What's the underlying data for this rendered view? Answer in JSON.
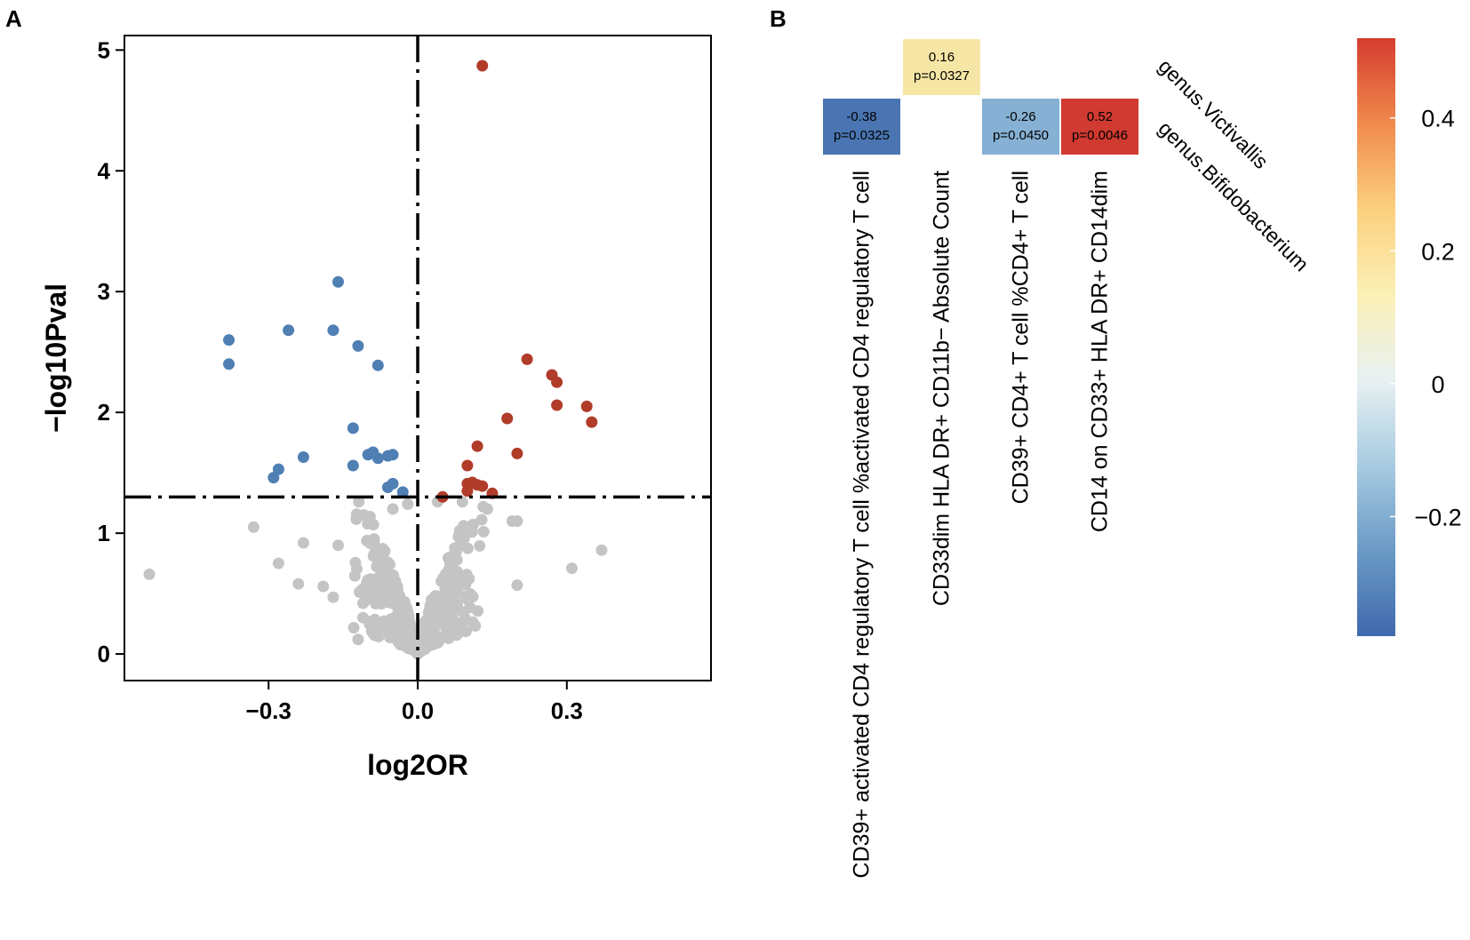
{
  "chart_data": [
    {
      "panel": "A",
      "type": "scatter",
      "xlabel": "log2OR",
      "ylabel": "−log10Pval",
      "xlim": [
        -0.59,
        0.59
      ],
      "ylim": [
        -0.22,
        5.12
      ],
      "xticks": [
        -0.3,
        0.0,
        0.3
      ],
      "xtick_labels": [
        "−0.3",
        "0.0",
        "0.3"
      ],
      "yticks": [
        0,
        1,
        2,
        3,
        4,
        5
      ],
      "ytick_labels": [
        "0",
        "1",
        "2",
        "3",
        "4",
        "5"
      ],
      "threshold_y": 1.3,
      "threshold_x": 0.0,
      "colors": {
        "negative": "#4f7fb3",
        "positive": "#b13c2a",
        "nonsignificant": "#c4c4c4",
        "axis": "#000000"
      },
      "series": [
        {
          "name": "significant-negative",
          "color": "#4f7fb3",
          "points": [
            [
              -0.38,
              2.6
            ],
            [
              -0.38,
              2.4
            ],
            [
              -0.26,
              2.68
            ],
            [
              -0.16,
              3.08
            ],
            [
              -0.17,
              2.68
            ],
            [
              -0.12,
              2.55
            ],
            [
              -0.08,
              2.39
            ],
            [
              -0.29,
              1.46
            ],
            [
              -0.28,
              1.53
            ],
            [
              -0.23,
              1.63
            ],
            [
              -0.13,
              1.87
            ],
            [
              -0.13,
              1.56
            ],
            [
              -0.1,
              1.65
            ],
            [
              -0.09,
              1.67
            ],
            [
              -0.08,
              1.62
            ],
            [
              -0.06,
              1.64
            ],
            [
              -0.05,
              1.65
            ],
            [
              -0.06,
              1.38
            ],
            [
              -0.05,
              1.41
            ],
            [
              -0.03,
              1.34
            ]
          ]
        },
        {
          "name": "significant-positive",
          "color": "#b13c2a",
          "points": [
            [
              0.13,
              4.87
            ],
            [
              0.22,
              2.44
            ],
            [
              0.27,
              2.31
            ],
            [
              0.28,
              2.25
            ],
            [
              0.28,
              2.06
            ],
            [
              0.34,
              2.05
            ],
            [
              0.35,
              1.92
            ],
            [
              0.18,
              1.95
            ],
            [
              0.2,
              1.66
            ],
            [
              0.12,
              1.72
            ],
            [
              0.1,
              1.56
            ],
            [
              0.1,
              1.41
            ],
            [
              0.11,
              1.42
            ],
            [
              0.12,
              1.4
            ],
            [
              0.13,
              1.39
            ],
            [
              0.1,
              1.35
            ],
            [
              0.15,
              1.33
            ],
            [
              0.05,
              1.3
            ]
          ]
        },
        {
          "name": "non-significant",
          "color": "#c4c4c4",
          "points": [
            [
              -0.54,
              0.66
            ],
            [
              -0.33,
              1.05
            ],
            [
              -0.28,
              0.75
            ],
            [
              -0.24,
              0.58
            ],
            [
              -0.23,
              0.92
            ],
            [
              -0.19,
              0.56
            ],
            [
              -0.17,
              0.47
            ],
            [
              -0.16,
              0.9
            ],
            [
              -0.12,
              0.12
            ],
            [
              -0.11,
              0.3
            ],
            [
              -0.11,
              0.42
            ],
            [
              -0.1,
              0.52
            ],
            [
              0.31,
              0.71
            ],
            [
              0.37,
              0.86
            ],
            [
              0.2,
              0.57
            ],
            [
              0.19,
              1.1
            ],
            [
              0.2,
              1.1
            ],
            [
              0.14,
              1.2
            ],
            [
              0.09,
              1.26
            ],
            [
              0.04,
              1.26
            ],
            [
              -0.02,
              1.24
            ],
            [
              -0.05,
              1.2
            ],
            [
              0.0,
              0.08
            ]
          ]
        }
      ]
    },
    {
      "panel": "B",
      "type": "heatmap",
      "rows": [
        "genus.Victivallis",
        "genus.Bifidobacterium"
      ],
      "columns": [
        "CD39+ activated CD4 regulatory T cell %activated CD4 regulatory T cell",
        "CD33dim HLA DR+ CD11b− Absolute Count",
        "CD39+ CD4+ T cell %CD4+ T cell",
        "CD14 on CD33+ HLA DR+ CD14dim"
      ],
      "cells": [
        {
          "row": 0,
          "col": 1,
          "value": "0.16",
          "p": "p=0.0327",
          "fill": "#f6e6a5"
        },
        {
          "row": 1,
          "col": 0,
          "value": "-0.38",
          "p": "p=0.0325",
          "fill": "#4a75b2"
        },
        {
          "row": 1,
          "col": 2,
          "value": "-0.26",
          "p": "p=0.0450",
          "fill": "#86b1d4"
        },
        {
          "row": 1,
          "col": 3,
          "value": "0.52",
          "p": "p=0.0046",
          "fill": "#d03a31"
        }
      ],
      "colorbar": {
        "range": [
          -0.38,
          0.52
        ],
        "ticks": [
          -0.2,
          0,
          0.2,
          0.4
        ],
        "tick_labels": [
          "−0.2",
          "0",
          "0.2",
          "0.4"
        ],
        "stops": [
          "#3f69ad",
          "#6b9ac6",
          "#a7cbe1",
          "#e8f1f2",
          "#fbf0b6",
          "#fcd07f",
          "#f08a4d",
          "#d43d2f"
        ]
      }
    }
  ]
}
